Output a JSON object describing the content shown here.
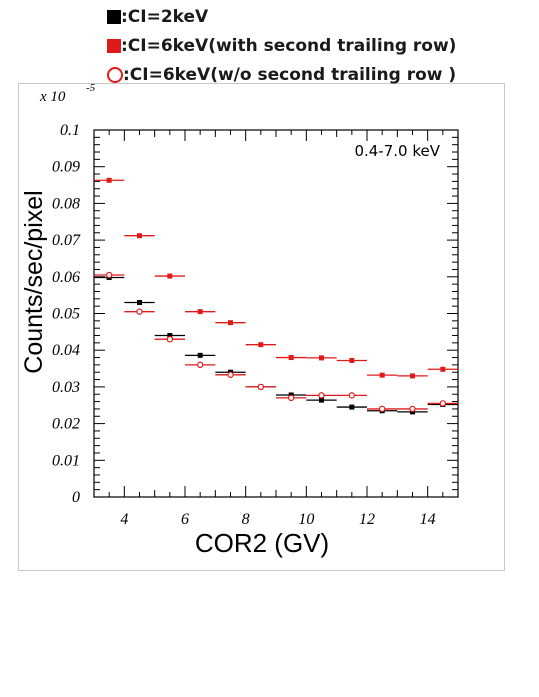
{
  "legend": [
    {
      "marker": "filled-square-black",
      "color": "#000000",
      "label": ":CI=2keV"
    },
    {
      "marker": "filled-square-red",
      "color": "#e01a1a",
      "label": ":CI=6keV(with second trailing row)"
    },
    {
      "marker": "open-circle-red",
      "color": "#e01a1a",
      "label": ":CI=6keV(w/o second trailing row )"
    }
  ],
  "chart_data": {
    "type": "scatter",
    "title": "",
    "annotation": "0.4-7.0 keV",
    "xlabel": "COR2  (GV)",
    "ylabel": "Counts/sec/pixel",
    "scale_label": "x 10",
    "scale_exponent": "-5",
    "xlim": [
      3,
      15
    ],
    "ylim": [
      0,
      0.1
    ],
    "x_ticks": [
      "4",
      "6",
      "8",
      "10",
      "12",
      "14"
    ],
    "y_ticks": [
      "0",
      "0.01",
      "0.02",
      "0.03",
      "0.04",
      "0.05",
      "0.06",
      "0.07",
      "0.08",
      "0.09",
      "0.1"
    ],
    "x_error": 0.5,
    "grid": false,
    "series": [
      {
        "name": ":CI=2keV",
        "marker": "filled-square",
        "color": "#000000",
        "x": [
          3.5,
          4.5,
          5.5,
          6.5,
          7.5,
          8.5,
          9.5,
          10.5,
          11.5,
          12.5,
          13.5,
          14.5
        ],
        "y": [
          0.0598,
          0.053,
          0.044,
          0.0386,
          0.034,
          0.03,
          0.0278,
          0.0264,
          0.0245,
          0.0235,
          0.0232,
          0.0252
        ]
      },
      {
        "name": ":CI=6keV(with second trailing row)",
        "marker": "filled-square",
        "color": "#e01a1a",
        "x": [
          3.5,
          4.5,
          5.5,
          6.5,
          7.5,
          8.5,
          9.5,
          10.5,
          11.5,
          12.5,
          13.5,
          14.5
        ],
        "y": [
          0.0863,
          0.0712,
          0.0602,
          0.0505,
          0.0475,
          0.0415,
          0.038,
          0.0379,
          0.0372,
          0.0332,
          0.033,
          0.0348
        ]
      },
      {
        "name": ":CI=6keV(w/o second trailing row )",
        "marker": "open-circle",
        "color": "#e01a1a",
        "x": [
          3.5,
          4.5,
          5.5,
          6.5,
          7.5,
          8.5,
          9.5,
          10.5,
          11.5,
          12.5,
          13.5,
          14.5
        ],
        "y": [
          0.0605,
          0.0505,
          0.043,
          0.036,
          0.0333,
          0.03,
          0.027,
          0.0277,
          0.0277,
          0.024,
          0.024,
          0.0255
        ]
      }
    ]
  }
}
